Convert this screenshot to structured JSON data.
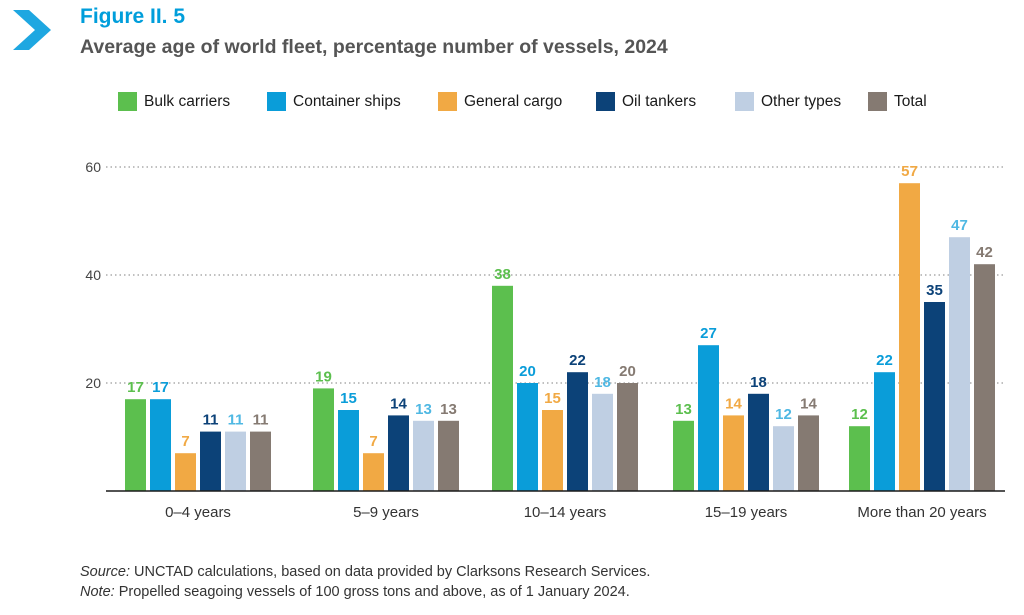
{
  "figure": {
    "label": "Figure II. 5",
    "title": "Average age of world fleet, percentage number of vessels, 2024"
  },
  "notes": {
    "source_label": "Source:",
    "source_text": " UNCTAD calculations, based on data provided by Clarksons Research Services.",
    "note_label": "Note:",
    "note_text": " Propelled seagoing vessels of 100 gross tons and above, as of 1 January 2024."
  },
  "icons": {
    "brand_chevron": "chevron-right-icon"
  },
  "chart_data": {
    "type": "bar",
    "title": "Average age of world fleet, percentage number of vessels, 2024",
    "xlabel": "",
    "ylabel": "",
    "categories": [
      "0–4 years",
      "5–9 years",
      "10–14 years",
      "15–19 years",
      "More than 20 years"
    ],
    "series": [
      {
        "name": "Bulk carriers",
        "color": "#5cbf4e",
        "label_color": "#5cbf4e",
        "values": [
          17,
          19,
          38,
          13,
          12
        ]
      },
      {
        "name": "Container ships",
        "color": "#0a9dd9",
        "label_color": "#0a9dd9",
        "values": [
          17,
          15,
          20,
          27,
          22
        ]
      },
      {
        "name": "General cargo",
        "color": "#f1a944",
        "label_color": "#f1a944",
        "values": [
          7,
          7,
          15,
          14,
          57
        ]
      },
      {
        "name": "Oil tankers",
        "color": "#0c4278",
        "label_color": "#0c4278",
        "values": [
          11,
          14,
          22,
          18,
          35
        ]
      },
      {
        "name": "Other types",
        "color": "#bfcfe3",
        "label_color": "#4fb8e3",
        "values": [
          11,
          13,
          18,
          12,
          47
        ]
      },
      {
        "name": "Total",
        "color": "#857a72",
        "label_color": "#857a72",
        "values": [
          11,
          13,
          20,
          14,
          42
        ]
      }
    ],
    "yticks": [
      20,
      40,
      60
    ],
    "ylim": [
      0,
      60
    ],
    "grid": "dotted horizontal",
    "legend_position": "top"
  }
}
